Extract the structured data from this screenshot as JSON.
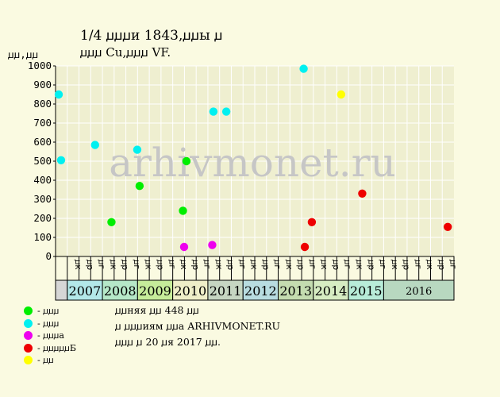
{
  "header": {
    "title_line1": "1/4 ꙡꙡꙡи 1843,ꙡꙡы ꙡ",
    "title_line2": "ꙡꙡꙡ Cu,ꙡꙡꙡ VF."
  },
  "notes": [
    "ꙡꙡняя ꙡꙡ 448 ꙡꙡ",
    "ꙡ ꙡꙡꙡиям ꙡꙡа ARHIVMONET.RU",
    "ꙡꙡꙡ ꙡ 20 ꙡя 2017 ꙡꙡ."
  ],
  "watermark": "arhivmonet.ru",
  "colors": {
    "background": "#fafae1",
    "plot": "#efefd0",
    "grid": "#ffffff"
  },
  "chart_data": {
    "type": "scatter",
    "ylabel": "ꙡꙡ,ꙡꙡ",
    "ylim": [
      0,
      1000
    ],
    "yticks": [
      0,
      100,
      200,
      300,
      400,
      500,
      600,
      700,
      800,
      900,
      1000
    ],
    "quarter_labels": [
      "ꙡк",
      "ꙡр",
      "ꙡг",
      "ꙡк",
      "ꙡр",
      "ꙡг",
      "ꙡк",
      "ꙡр",
      "ꙡг",
      "ꙡк",
      "ꙡр",
      "ꙡг",
      "ꙡк",
      "ꙡр",
      "ꙡг",
      "ꙡк",
      "ꙡр",
      "ꙡг",
      "ꙡк",
      "ꙡр",
      "ꙡг",
      "ꙡк",
      "ꙡр",
      "ꙡг",
      "ꙡк",
      "ꙡр",
      "ꙡг",
      "ꙡк",
      "ꙡр",
      "ꙡг",
      "ꙡк",
      "ꙡр",
      "ꙡг"
    ],
    "years": [
      {
        "label": "2007",
        "color": "#b3e8e8"
      },
      {
        "label": "2008",
        "color": "#b6e8c8"
      },
      {
        "label": "2009",
        "color": "#c6ec9a"
      },
      {
        "label": "2010",
        "color": "#eeeec8"
      },
      {
        "label": "2011",
        "color": "#c6d6c2"
      },
      {
        "label": "2012",
        "color": "#b8dce0"
      },
      {
        "label": "2013",
        "color": "#c4dcb0"
      },
      {
        "label": "2014",
        "color": "#d6ecc2"
      },
      {
        "label": "2015",
        "color": "#b8ecd8"
      },
      {
        "label": "2016",
        "color": "#b8d8c0"
      }
    ],
    "series": [
      {
        "name": "ꙡꙡꙡ",
        "color": "#00ee00",
        "points": [
          [
            4.5,
            180
          ],
          [
            6.9,
            370
          ],
          [
            10.6,
            240
          ],
          [
            10.9,
            500
          ]
        ]
      },
      {
        "name": "ꙡꙡꙡ",
        "color": "#00f0f0",
        "points": [
          [
            0,
            850
          ],
          [
            0.2,
            505
          ],
          [
            3.1,
            585
          ],
          [
            6.7,
            560
          ],
          [
            13.2,
            760
          ],
          [
            14.3,
            760
          ],
          [
            20.9,
            985
          ]
        ]
      },
      {
        "name": "ꙡꙡꙡа",
        "color": "#ee00ee",
        "points": [
          [
            10.7,
            50
          ],
          [
            13.1,
            60
          ]
        ]
      },
      {
        "name": "ꙡꙡꙡꙡꙡБ",
        "color": "#ee0000",
        "points": [
          [
            21,
            50
          ],
          [
            21.6,
            180
          ],
          [
            25.9,
            330
          ],
          [
            33.2,
            155
          ]
        ]
      },
      {
        "name": "ꙡꙡ",
        "color": "#ffff00",
        "points": [
          [
            24.1,
            850
          ]
        ]
      }
    ]
  }
}
